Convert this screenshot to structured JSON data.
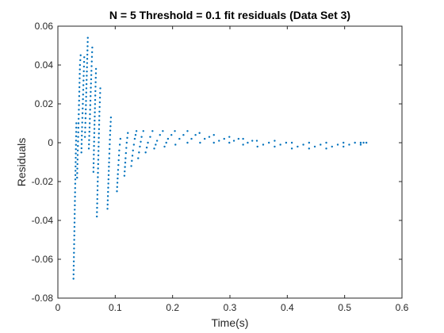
{
  "chart_data": {
    "type": "scatter",
    "title": "N = 5 Threshold = 0.1 fit residuals (Data Set 3)",
    "xlabel": "Time(s)",
    "ylabel": "Residuals",
    "xlim": [
      0,
      0.6
    ],
    "ylim": [
      -0.08,
      0.06
    ],
    "xticks": [
      0,
      0.1,
      0.2,
      0.3,
      0.4,
      0.5,
      0.6
    ],
    "xtick_labels": [
      "0",
      "0.1",
      "0.2",
      "0.3",
      "0.4",
      "0.5",
      "0.6"
    ],
    "yticks": [
      -0.08,
      -0.06,
      -0.04,
      -0.02,
      0,
      0.02,
      0.04,
      0.06
    ],
    "ytick_labels": [
      "-0.08",
      "-0.06",
      "-0.04",
      "-0.02",
      "0",
      "0.02",
      "0.04",
      "0.06"
    ],
    "grid": false,
    "marker_color": "#0072BD",
    "series": [
      {
        "values_by_segment": [
          {
            "x": [
              0.0272,
              0.0285,
              0.0297,
              0.031,
              0.0322
            ],
            "y": [
              -0.07,
              -0.05,
              -0.03,
              -0.01,
              0.01
            ]
          },
          {
            "x": [
              0.0335,
              0.0347,
              0.036,
              0.0372,
              0.0385,
              0.0397
            ],
            "y": [
              -0.018,
              -0.004,
              0.01,
              0.024,
              0.04,
              0.045
            ]
          },
          {
            "x": [
              0.041,
              0.0422,
              0.0435,
              0.0447,
              0.046
            ],
            "y": [
              -0.005,
              0.008,
              0.02,
              0.032,
              0.044
            ]
          },
          {
            "x": [
              0.0472,
              0.0485,
              0.0497,
              0.051,
              0.0522
            ],
            "y": [
              0.003,
              0.015,
              0.028,
              0.041,
              0.054
            ]
          },
          {
            "x": [
              0.054,
              0.0555,
              0.057,
              0.0585,
              0.06
            ],
            "y": [
              -0.003,
              0.01,
              0.024,
              0.037,
              0.049
            ]
          },
          {
            "x": [
              0.062,
              0.0635,
              0.065,
              0.0665
            ],
            "y": [
              -0.015,
              0.005,
              0.022,
              0.038
            ]
          },
          {
            "x": [
              0.068,
              0.0695,
              0.071,
              0.0725,
              0.074
            ],
            "y": [
              -0.038,
              -0.02,
              -0.002,
              0.016,
              0.028
            ]
          },
          {
            "x": [
              0.0865,
              0.088,
              0.0895,
              0.091,
              0.0925
            ],
            "y": [
              -0.034,
              -0.021,
              -0.008,
              0.004,
              0.013
            ]
          },
          {
            "x": [
              0.103,
              0.105,
              0.107,
              0.109
            ],
            "y": [
              -0.025,
              -0.014,
              -0.004,
              0.002
            ]
          },
          {
            "x": [
              0.116,
              0.118,
              0.12,
              0.122
            ],
            "y": [
              -0.017,
              -0.008,
              0.0,
              0.005
            ]
          },
          {
            "x": [
              0.128,
              0.131,
              0.134,
              0.137
            ],
            "y": [
              -0.012,
              -0.004,
              0.002,
              0.006
            ]
          },
          {
            "x": [
              0.14,
              0.143,
              0.146,
              0.149
            ],
            "y": [
              -0.008,
              -0.002,
              0.003,
              0.006
            ]
          },
          {
            "x": [
              0.153,
              0.157,
              0.161,
              0.165
            ],
            "y": [
              -0.005,
              0.0,
              0.003,
              0.006
            ]
          },
          {
            "x": [
              0.168,
              0.173,
              0.178,
              0.183
            ],
            "y": [
              -0.003,
              0.001,
              0.004,
              0.006
            ]
          },
          {
            "x": [
              0.186,
              0.192,
              0.198,
              0.204
            ],
            "y": [
              -0.002,
              0.002,
              0.004,
              0.006
            ]
          },
          {
            "x": [
              0.205,
              0.212,
              0.219,
              0.226
            ],
            "y": [
              -0.001,
              0.002,
              0.004,
              0.006
            ]
          },
          {
            "x": [
              0.226,
              0.233,
              0.24,
              0.247
            ],
            "y": [
              0.0,
              0.002,
              0.004,
              0.005
            ]
          },
          {
            "x": [
              0.248,
              0.256,
              0.264,
              0.272
            ],
            "y": [
              0.0,
              0.002,
              0.003,
              0.004
            ]
          },
          {
            "x": [
              0.272,
              0.281,
              0.29,
              0.299
            ],
            "y": [
              0.0,
              0.001,
              0.002,
              0.003
            ]
          },
          {
            "x": [
              0.299,
              0.307,
              0.315,
              0.323
            ],
            "y": [
              0.0,
              0.001,
              0.002,
              0.002
            ]
          },
          {
            "x": [
              0.323,
              0.331,
              0.339,
              0.347
            ],
            "y": [
              -0.001,
              0.0,
              0.001,
              0.001
            ]
          },
          {
            "x": [
              0.348,
              0.358,
              0.368,
              0.378
            ],
            "y": [
              -0.002,
              -0.001,
              0.0,
              0.001
            ]
          },
          {
            "x": [
              0.378,
              0.388,
              0.398,
              0.408
            ],
            "y": [
              -0.002,
              -0.001,
              0.0,
              0.0
            ]
          },
          {
            "x": [
              0.408,
              0.418,
              0.428,
              0.438
            ],
            "y": [
              -0.003,
              -0.002,
              -0.001,
              0.0
            ]
          },
          {
            "x": [
              0.438,
              0.448,
              0.458,
              0.468
            ],
            "y": [
              -0.003,
              -0.002,
              -0.001,
              0.0
            ]
          },
          {
            "x": [
              0.468,
              0.478,
              0.488,
              0.498
            ],
            "y": [
              -0.003,
              -0.002,
              -0.001,
              0.0
            ]
          },
          {
            "x": [
              0.498,
              0.508,
              0.518,
              0.528
            ],
            "y": [
              -0.002,
              -0.001,
              0.0,
              0.0
            ]
          },
          {
            "x": [
              0.528,
              0.533,
              0.538
            ],
            "y": [
              -0.001,
              0.0,
              0.0
            ]
          }
        ]
      }
    ]
  }
}
